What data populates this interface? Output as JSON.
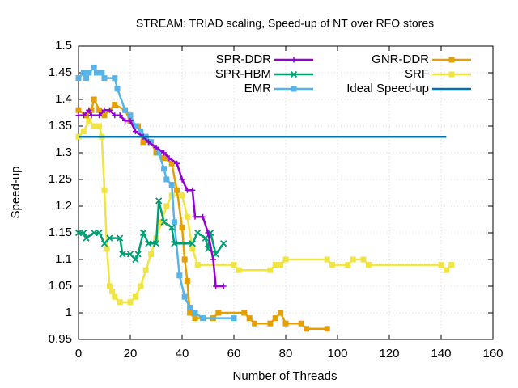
{
  "chart_data": {
    "type": "line",
    "title": "STREAM: TRIAD scaling, Speed-up of NT over RFO stores",
    "x_label": "Number of Threads",
    "y_label": "Speed-up",
    "xlim": [
      0,
      160
    ],
    "xticks": [
      0,
      20,
      40,
      60,
      80,
      100,
      120,
      140,
      160
    ],
    "ylim": [
      0.95,
      1.5
    ],
    "yticks": [
      0.95,
      1,
      1.05,
      1.1,
      1.15,
      1.2,
      1.25,
      1.3,
      1.35,
      1.4,
      1.45,
      1.5
    ],
    "grid": true,
    "legend": "top-right",
    "series": [
      {
        "name": "SPR-DDR",
        "color": "#9400d3",
        "marker": "plus",
        "x": [
          0,
          2,
          4,
          5,
          8,
          10,
          12,
          14,
          16,
          18,
          20,
          22,
          25,
          27,
          30,
          33,
          35,
          38,
          40,
          42,
          44,
          45,
          48,
          50,
          52,
          53,
          56
        ],
        "values": [
          1.37,
          1.37,
          1.38,
          1.37,
          1.37,
          1.38,
          1.38,
          1.37,
          1.37,
          1.36,
          1.36,
          1.34,
          1.33,
          1.32,
          1.31,
          1.3,
          1.29,
          1.28,
          1.25,
          1.23,
          1.23,
          1.18,
          1.18,
          1.15,
          1.1,
          1.05,
          1.05
        ]
      },
      {
        "name": "SPR-HBM",
        "color": "#009e73",
        "marker": "cross",
        "x": [
          0,
          2,
          3,
          6,
          8,
          10,
          12,
          16,
          17,
          20,
          22,
          23,
          25,
          27,
          30,
          31,
          33,
          36,
          37,
          44,
          46,
          49,
          50,
          51,
          53,
          56
        ],
        "values": [
          1.15,
          1.15,
          1.14,
          1.15,
          1.15,
          1.13,
          1.14,
          1.14,
          1.11,
          1.11,
          1.1,
          1.11,
          1.15,
          1.13,
          1.13,
          1.21,
          1.17,
          1.16,
          1.13,
          1.13,
          1.15,
          1.14,
          1.12,
          1.15,
          1.11,
          1.13
        ]
      },
      {
        "name": "EMR",
        "color": "#56b4e9",
        "marker": "square",
        "x": [
          0,
          2,
          3,
          4,
          6,
          7,
          9,
          10,
          14,
          15,
          18,
          20,
          22,
          24,
          26,
          28,
          31,
          33,
          34,
          36,
          37,
          39,
          41,
          43,
          45,
          48,
          60
        ],
        "values": [
          1.44,
          1.45,
          1.44,
          1.45,
          1.46,
          1.45,
          1.45,
          1.44,
          1.44,
          1.42,
          1.38,
          1.37,
          1.35,
          1.34,
          1.33,
          1.32,
          1.3,
          1.27,
          1.25,
          1.24,
          1.17,
          1.07,
          1.03,
          1.01,
          1.0,
          0.99,
          0.99
        ]
      },
      {
        "name": "GNR-DDR",
        "color": "#e69f00",
        "marker": "square",
        "x": [
          0,
          3,
          5,
          6,
          8,
          10,
          14,
          18,
          20,
          23,
          25,
          28,
          30,
          33,
          36,
          38,
          40,
          41,
          42,
          43,
          45,
          52,
          54,
          64,
          66,
          68,
          74,
          76,
          78,
          80,
          86,
          88,
          96
        ],
        "values": [
          1.38,
          1.37,
          1.38,
          1.4,
          1.38,
          1.37,
          1.39,
          1.38,
          1.36,
          1.35,
          1.32,
          1.32,
          1.3,
          1.29,
          1.28,
          1.23,
          1.16,
          1.1,
          1.06,
          1.0,
          0.99,
          0.99,
          1.0,
          1.0,
          0.99,
          0.98,
          0.98,
          0.99,
          1.0,
          0.98,
          0.98,
          0.97,
          0.97
        ]
      },
      {
        "name": "SRF",
        "color": "#f0e442",
        "marker": "square",
        "x": [
          0,
          2,
          4,
          6,
          8,
          9,
          10,
          11,
          12,
          13,
          14,
          16,
          20,
          22,
          24,
          26,
          28,
          30,
          32,
          34,
          36,
          40,
          42,
          44,
          46,
          60,
          62,
          74,
          76,
          78,
          80,
          96,
          98,
          104,
          106,
          110,
          112,
          140,
          142,
          144
        ],
        "values": [
          1.33,
          1.34,
          1.36,
          1.35,
          1.35,
          1.33,
          1.23,
          1.12,
          1.05,
          1.04,
          1.03,
          1.02,
          1.02,
          1.03,
          1.05,
          1.08,
          1.11,
          1.14,
          1.17,
          1.2,
          1.22,
          1.22,
          1.18,
          1.12,
          1.09,
          1.09,
          1.08,
          1.08,
          1.09,
          1.09,
          1.1,
          1.1,
          1.09,
          1.09,
          1.1,
          1.1,
          1.09,
          1.09,
          1.08,
          1.09
        ]
      },
      {
        "name": "Ideal Speed-up",
        "color": "#0072b2",
        "marker": "none",
        "x": [
          0,
          142
        ],
        "values": [
          1.33,
          1.33
        ]
      }
    ]
  }
}
